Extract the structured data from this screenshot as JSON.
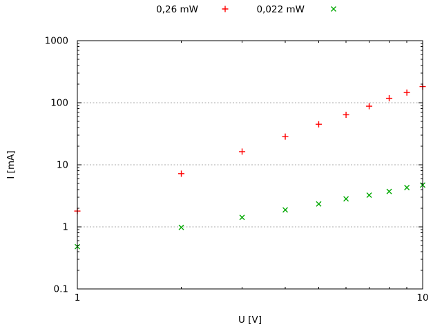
{
  "chart_data": {
    "type": "scatter",
    "title": "",
    "xlabel": "U [V]",
    "ylabel": "I [mA]",
    "x_scale": "log",
    "y_scale": "log",
    "xlim": [
      1,
      10
    ],
    "ylim": [
      0.1,
      1000
    ],
    "x_major_ticks": [
      1,
      10
    ],
    "x_tick_labels": [
      "1",
      "10"
    ],
    "y_major_ticks": [
      0.1,
      1,
      10,
      100,
      1000
    ],
    "y_tick_labels": [
      "0.1",
      "1",
      "10",
      "100",
      "1000"
    ],
    "grid": {
      "horizontal_at": [
        1,
        10,
        100
      ],
      "style": "dashed",
      "color": "#aaaaaa"
    },
    "legend_position": "top-center",
    "x": [
      1,
      2,
      3,
      4,
      5,
      6,
      7,
      8,
      9,
      10
    ],
    "series": [
      {
        "name": "0,26 mW",
        "marker": "plus",
        "color": "#ff0000",
        "values": [
          1.8,
          7.2,
          16.3,
          28.5,
          45,
          64,
          88,
          118,
          146,
          182
        ]
      },
      {
        "name": "0,022 mW",
        "marker": "cross",
        "color": "#00a800",
        "values": [
          0.48,
          0.98,
          1.42,
          1.88,
          2.34,
          2.83,
          3.24,
          3.72,
          4.3,
          4.72
        ]
      }
    ],
    "colors": {
      "axis": "#000000",
      "text": "#000000",
      "background": "#ffffff"
    }
  }
}
